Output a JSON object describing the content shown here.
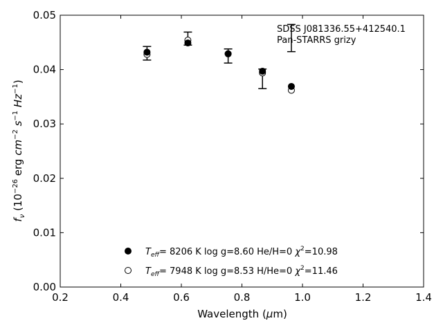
{
  "chart_data": {
    "type": "scatter",
    "xlabel": "Wavelength (μm)",
    "ylabel": "fν (10⁻²⁶ erg cm⁻² s⁻¹ Hz⁻¹)",
    "xlim": [
      0.2,
      1.4
    ],
    "ylim": [
      0.0,
      0.05
    ],
    "xticks": [
      "0.2",
      "0.4",
      "0.6",
      "0.8",
      "1.0",
      "1.2",
      "1.4"
    ],
    "yticks": [
      "0.00",
      "0.01",
      "0.02",
      "0.03",
      "0.04",
      "0.05"
    ],
    "grid": false,
    "annotation": [
      "SDSS J081336.55+412540.1",
      "Pan-STARRS grizy"
    ],
    "observed": {
      "x": [
        0.4866,
        0.6215,
        0.7545,
        0.8679,
        0.9633
      ],
      "y": [
        0.043,
        0.0457,
        0.0425,
        0.0383,
        0.0458
      ],
      "yerr": [
        0.00125,
        0.0012,
        0.0013,
        0.0018,
        0.0025
      ]
    },
    "series": [
      {
        "name": "Teff= 8206 K  log g=8.60  He/H=0  χ²=10.98",
        "marker": "filled-circle",
        "x": [
          0.4866,
          0.6215,
          0.7545,
          0.8679,
          0.9633
        ],
        "y": [
          0.0432,
          0.0449,
          0.0429,
          0.0397,
          0.0369
        ]
      },
      {
        "name": "Teff= 7948 K  log g=8.53  H/He=0  χ²=11.46",
        "marker": "open-circle",
        "x": [
          0.4866,
          0.6215,
          0.7545,
          0.8679,
          0.9633
        ],
        "y": [
          0.0428,
          0.0454,
          0.0429,
          0.0394,
          0.0362
        ]
      }
    ],
    "legend": {
      "placement": "bottom-center",
      "entries": [
        {
          "teff": "8206 K",
          "logg": "log g=8.60",
          "comp": "He/H=0",
          "chi2": "=10.98"
        },
        {
          "teff": "7948 K",
          "logg": "log g=8.53",
          "comp": "H/He=0",
          "chi2": "=11.46"
        }
      ]
    }
  }
}
